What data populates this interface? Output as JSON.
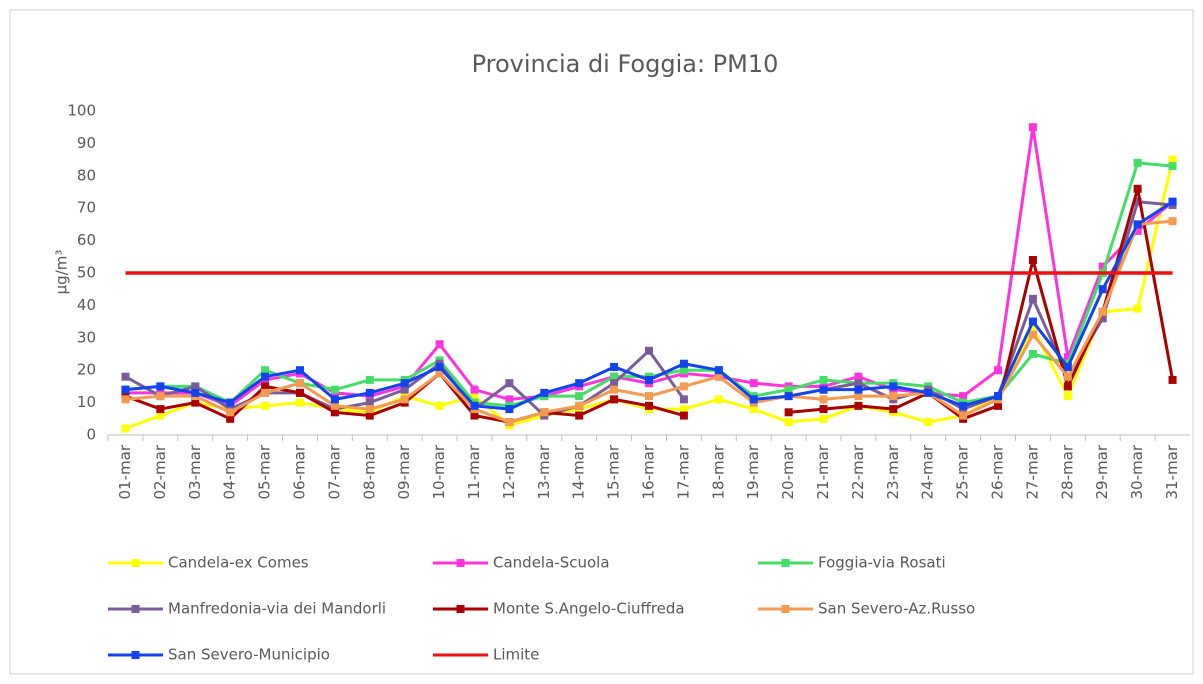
{
  "chart_data": {
    "type": "line",
    "title": "Provincia di Foggia: PM10",
    "y_label": "µg/m³",
    "categories": [
      "01-mar",
      "02-mar",
      "03-mar",
      "04-mar",
      "05-mar",
      "06-mar",
      "07-mar",
      "08-mar",
      "09-mar",
      "10-mar",
      "11-mar",
      "12-mar",
      "13-mar",
      "14-mar",
      "15-mar",
      "16-mar",
      "17-mar",
      "18-mar",
      "19-mar",
      "20-mar",
      "21-mar",
      "22-mar",
      "23-mar",
      "24-mar",
      "25-mar",
      "26-mar",
      "27-mar",
      "28-mar",
      "29-mar",
      "30-mar",
      "31-mar"
    ],
    "ylim": [
      0,
      100
    ],
    "yticks": [
      0,
      10,
      20,
      30,
      40,
      50,
      60,
      70,
      80,
      90,
      100
    ],
    "grid": false,
    "series": [
      {
        "name": "Candela-ex Comes",
        "color": "#ffff00",
        "marker": true,
        "values": [
          2,
          6,
          10,
          8,
          9,
          10,
          8,
          7,
          12,
          9,
          12,
          3,
          6,
          8,
          11,
          8,
          8,
          11,
          8,
          4,
          5,
          9,
          7,
          4,
          6,
          12,
          33,
          12,
          38,
          39,
          85
        ]
      },
      {
        "name": "Candela-Scuola",
        "color": "#ff33dd",
        "marker": true,
        "values": [
          13,
          13,
          13,
          9,
          17,
          19,
          13,
          12,
          15,
          28,
          14,
          11,
          12,
          15,
          18,
          16,
          19,
          18,
          16,
          15,
          15,
          18,
          14,
          13,
          12,
          20,
          95,
          24,
          52,
          63,
          72
        ]
      },
      {
        "name": "Foggia-via Rosati",
        "color": "#44dd66",
        "marker": true,
        "values": [
          14,
          15,
          15,
          10,
          20,
          16,
          14,
          17,
          17,
          23,
          10,
          9,
          12,
          12,
          18,
          18,
          20,
          20,
          12,
          14,
          17,
          16,
          16,
          15,
          10,
          12,
          25,
          22,
          50,
          84,
          83
        ]
      },
      {
        "name": "Manfredonia-via dei Mandorli",
        "color": "#7a5c9a",
        "marker": true,
        "values": [
          18,
          12,
          15,
          8,
          13,
          13,
          8,
          10,
          14,
          22,
          8,
          16,
          6,
          9,
          16,
          26,
          11,
          null,
          null,
          null,
          14,
          16,
          11,
          14,
          8,
          12,
          42,
          18,
          36,
          72,
          71
        ]
      },
      {
        "name": "Monte S.Angelo-Ciuffreda",
        "color": "#aa0000",
        "marker": true,
        "values": [
          12,
          8,
          10,
          5,
          15,
          13,
          7,
          6,
          10,
          19,
          6,
          4,
          7,
          6,
          11,
          9,
          6,
          null,
          null,
          7,
          8,
          9,
          8,
          13,
          5,
          9,
          54,
          15,
          38,
          76,
          17
        ]
      },
      {
        "name": "San Severo-Az.Russo",
        "color": "#f59a50",
        "marker": true,
        "values": [
          11,
          12,
          12,
          7,
          13,
          16,
          9,
          8,
          11,
          19,
          8,
          4,
          7,
          9,
          14,
          12,
          15,
          18,
          10,
          12,
          11,
          12,
          12,
          13,
          6,
          11,
          31,
          18,
          38,
          65,
          66
        ]
      },
      {
        "name": "San Severo-Municipio",
        "color": "#1144ee",
        "marker": true,
        "values": [
          14,
          15,
          13,
          10,
          18,
          20,
          11,
          13,
          16,
          21,
          9,
          8,
          13,
          16,
          21,
          17,
          22,
          20,
          11,
          12,
          14,
          14,
          15,
          13,
          9,
          12,
          35,
          21,
          45,
          65,
          72
        ]
      },
      {
        "name": "Limite",
        "color": "#ee1111",
        "marker": false,
        "values": [
          50,
          50,
          50,
          50,
          50,
          50,
          50,
          50,
          50,
          50,
          50,
          50,
          50,
          50,
          50,
          50,
          50,
          50,
          50,
          50,
          50,
          50,
          50,
          50,
          50,
          50,
          50,
          50,
          50,
          50,
          50
        ]
      }
    ]
  }
}
